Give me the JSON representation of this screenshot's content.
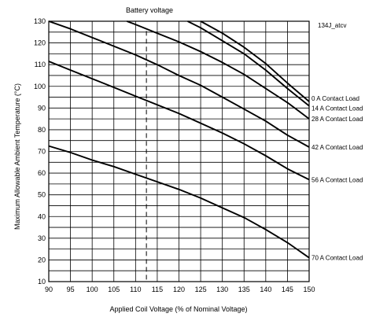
{
  "chart_data": {
    "type": "line",
    "title": "Battery voltage",
    "figure_id": "134J_atcv",
    "xlabel": "Applied Coil Voltage (% of Nominal Voltage)",
    "ylabel": "Maximum Allowable Ambient Temperature (°C)",
    "xlim": [
      90,
      150
    ],
    "ylim": [
      10,
      130
    ],
    "xticks": [
      90,
      95,
      100,
      105,
      110,
      115,
      120,
      125,
      130,
      135,
      140,
      145,
      150
    ],
    "yticks": [
      10,
      20,
      30,
      40,
      50,
      60,
      70,
      80,
      90,
      100,
      110,
      120,
      130
    ],
    "grid": true,
    "reference_line": {
      "x": 112.5,
      "style": "dashed"
    },
    "series": [
      {
        "name": "0 A Contact Load",
        "x": [
          125,
          130,
          135,
          140,
          145,
          150
        ],
        "y": [
          130,
          124.5,
          118,
          110.5,
          101.5,
          93
        ]
      },
      {
        "name": "14 A Contact Load",
        "x": [
          122,
          125,
          130,
          135,
          140,
          145,
          150
        ],
        "y": [
          130,
          127,
          121,
          115,
          107.5,
          99,
          91
        ]
      },
      {
        "name": "28 A Contact Load",
        "x": [
          108,
          110,
          115,
          120,
          125,
          130,
          135,
          140,
          145,
          150
        ],
        "y": [
          130,
          128.5,
          124.5,
          120.5,
          116,
          111,
          105.5,
          99,
          92.5,
          85
        ]
      },
      {
        "name": "42 A Contact Load",
        "x": [
          90,
          95,
          100,
          105,
          110,
          115,
          120,
          125,
          130,
          135,
          140,
          145,
          150
        ],
        "y": [
          130,
          126.5,
          122.5,
          118.5,
          114.5,
          110,
          105,
          100.5,
          95,
          89.5,
          84,
          77.5,
          72
        ]
      },
      {
        "name": "56 A Contact Load",
        "x": [
          90,
          95,
          100,
          105,
          110,
          115,
          120,
          125,
          130,
          135,
          140,
          145,
          150
        ],
        "y": [
          111.5,
          107.5,
          103.5,
          99.5,
          95.5,
          91.5,
          87.5,
          83,
          78.5,
          73.5,
          68,
          62,
          57
        ]
      },
      {
        "name": "70 A Contact Load",
        "x": [
          90,
          95,
          100,
          105,
          110,
          115,
          120,
          125,
          130,
          135,
          140,
          145,
          150
        ],
        "y": [
          72.5,
          69.5,
          66,
          63,
          59.5,
          56,
          52.5,
          48.5,
          44,
          39.5,
          34,
          28,
          21
        ]
      }
    ]
  }
}
